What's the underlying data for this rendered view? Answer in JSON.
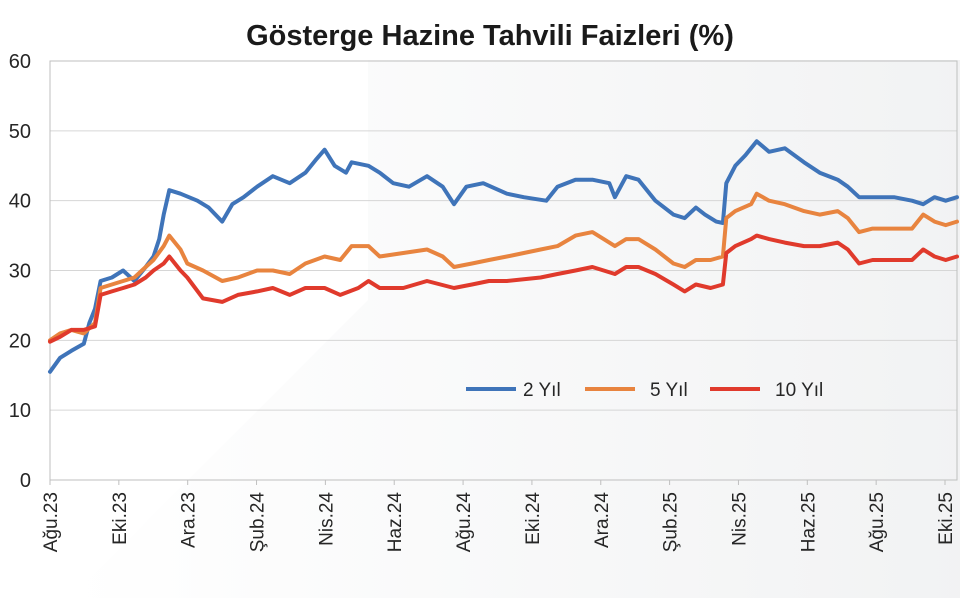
{
  "chart_data": {
    "type": "line",
    "title": "Gösterge Hazine Tahvili Faizleri (%)",
    "xlabel": "",
    "ylabel": "",
    "ylim": [
      0,
      60
    ],
    "yticks": [
      0,
      10,
      20,
      30,
      40,
      50,
      60
    ],
    "grid": "horizontal",
    "legend_position": "bottom-center",
    "x_tick_labels": [
      "Ağu.23",
      "Eki.23",
      "Ara.23",
      "Şub.24",
      "Nis.24",
      "Haz.24",
      "Ağu.24",
      "Eki.24",
      "Ara.24",
      "Şub.25",
      "Nis.25",
      "Haz.25",
      "Ağu.25",
      "Eki.25"
    ],
    "x_domain": [
      "2023-08-01",
      "2025-10-15"
    ],
    "series": [
      {
        "name": "2 Yıl",
        "color": "#3f74b9",
        "points": [
          [
            "2023-08-01",
            15.5
          ],
          [
            "2023-08-10",
            17.5
          ],
          [
            "2023-08-20",
            18.5
          ],
          [
            "2023-08-31",
            19.5
          ],
          [
            "2023-09-05",
            22.5
          ],
          [
            "2023-09-10",
            24.5
          ],
          [
            "2023-09-15",
            28.5
          ],
          [
            "2023-09-25",
            29.0
          ],
          [
            "2023-10-05",
            30.0
          ],
          [
            "2023-10-15",
            28.5
          ],
          [
            "2023-10-25",
            30.5
          ],
          [
            "2023-11-01",
            32.0
          ],
          [
            "2023-11-06",
            34.5
          ],
          [
            "2023-11-10",
            38.0
          ],
          [
            "2023-11-15",
            41.5
          ],
          [
            "2023-11-25",
            41.0
          ],
          [
            "2023-12-10",
            40.0
          ],
          [
            "2023-12-20",
            39.0
          ],
          [
            "2024-01-01",
            37.0
          ],
          [
            "2024-01-10",
            39.5
          ],
          [
            "2024-01-20",
            40.5
          ],
          [
            "2024-02-01",
            42.0
          ],
          [
            "2024-02-15",
            43.5
          ],
          [
            "2024-03-01",
            42.5
          ],
          [
            "2024-03-15",
            44.0
          ],
          [
            "2024-03-25",
            46.0
          ],
          [
            "2024-04-01",
            47.3
          ],
          [
            "2024-04-10",
            45.0
          ],
          [
            "2024-04-20",
            44.0
          ],
          [
            "2024-04-25",
            45.5
          ],
          [
            "2024-05-10",
            45.0
          ],
          [
            "2024-05-20",
            44.0
          ],
          [
            "2024-06-01",
            42.5
          ],
          [
            "2024-06-15",
            42.0
          ],
          [
            "2024-07-01",
            43.5
          ],
          [
            "2024-07-15",
            42.0
          ],
          [
            "2024-07-25",
            39.5
          ],
          [
            "2024-08-05",
            42.0
          ],
          [
            "2024-08-20",
            42.5
          ],
          [
            "2024-09-10",
            41.0
          ],
          [
            "2024-09-25",
            40.5
          ],
          [
            "2024-10-15",
            40.0
          ],
          [
            "2024-10-25",
            42.0
          ],
          [
            "2024-11-10",
            43.0
          ],
          [
            "2024-11-25",
            43.0
          ],
          [
            "2024-12-10",
            42.5
          ],
          [
            "2024-12-15",
            40.5
          ],
          [
            "2024-12-25",
            43.5
          ],
          [
            "2025-01-05",
            43.0
          ],
          [
            "2025-01-20",
            40.0
          ],
          [
            "2025-02-05",
            38.0
          ],
          [
            "2025-02-15",
            37.5
          ],
          [
            "2025-02-25",
            39.0
          ],
          [
            "2025-03-05",
            38.0
          ],
          [
            "2025-03-15",
            37.0
          ],
          [
            "2025-03-21",
            36.8
          ],
          [
            "2025-03-24",
            42.5
          ],
          [
            "2025-04-01",
            45.0
          ],
          [
            "2025-04-10",
            46.5
          ],
          [
            "2025-04-20",
            48.5
          ],
          [
            "2025-05-01",
            47.0
          ],
          [
            "2025-05-15",
            47.5
          ],
          [
            "2025-06-01",
            45.5
          ],
          [
            "2025-06-15",
            44.0
          ],
          [
            "2025-07-01",
            43.0
          ],
          [
            "2025-07-10",
            42.0
          ],
          [
            "2025-07-20",
            40.5
          ],
          [
            "2025-08-01",
            40.5
          ],
          [
            "2025-08-20",
            40.5
          ],
          [
            "2025-09-05",
            40.0
          ],
          [
            "2025-09-15",
            39.5
          ],
          [
            "2025-09-25",
            40.5
          ],
          [
            "2025-10-05",
            40.0
          ],
          [
            "2025-10-15",
            40.5
          ]
        ]
      },
      {
        "name": "5 Yıl",
        "color": "#e8843f",
        "points": [
          [
            "2023-08-01",
            20.0
          ],
          [
            "2023-08-10",
            21.0
          ],
          [
            "2023-08-20",
            21.5
          ],
          [
            "2023-08-31",
            21.0
          ],
          [
            "2023-09-10",
            22.5
          ],
          [
            "2023-09-15",
            27.5
          ],
          [
            "2023-09-25",
            28.0
          ],
          [
            "2023-10-05",
            28.5
          ],
          [
            "2023-10-15",
            29.0
          ],
          [
            "2023-10-25",
            30.5
          ],
          [
            "2023-11-01",
            31.5
          ],
          [
            "2023-11-10",
            33.5
          ],
          [
            "2023-11-15",
            35.0
          ],
          [
            "2023-11-25",
            33.0
          ],
          [
            "2023-12-01",
            31.0
          ],
          [
            "2023-12-15",
            30.0
          ],
          [
            "2024-01-01",
            28.5
          ],
          [
            "2024-01-15",
            29.0
          ],
          [
            "2024-02-01",
            30.0
          ],
          [
            "2024-02-15",
            30.0
          ],
          [
            "2024-03-01",
            29.5
          ],
          [
            "2024-03-15",
            31.0
          ],
          [
            "2024-04-01",
            32.0
          ],
          [
            "2024-04-15",
            31.5
          ],
          [
            "2024-04-25",
            33.5
          ],
          [
            "2024-05-10",
            33.5
          ],
          [
            "2024-05-20",
            32.0
          ],
          [
            "2024-06-10",
            32.5
          ],
          [
            "2024-07-01",
            33.0
          ],
          [
            "2024-07-15",
            32.0
          ],
          [
            "2024-07-25",
            30.5
          ],
          [
            "2024-08-10",
            31.0
          ],
          [
            "2024-08-25",
            31.5
          ],
          [
            "2024-09-10",
            32.0
          ],
          [
            "2024-09-25",
            32.5
          ],
          [
            "2024-10-10",
            33.0
          ],
          [
            "2024-10-25",
            33.5
          ],
          [
            "2024-11-10",
            35.0
          ],
          [
            "2024-11-25",
            35.5
          ],
          [
            "2024-12-05",
            34.5
          ],
          [
            "2024-12-15",
            33.5
          ],
          [
            "2024-12-25",
            34.5
          ],
          [
            "2025-01-05",
            34.5
          ],
          [
            "2025-01-20",
            33.0
          ],
          [
            "2025-02-05",
            31.0
          ],
          [
            "2025-02-15",
            30.5
          ],
          [
            "2025-02-25",
            31.5
          ],
          [
            "2025-03-10",
            31.5
          ],
          [
            "2025-03-21",
            32.0
          ],
          [
            "2025-03-24",
            37.5
          ],
          [
            "2025-04-01",
            38.5
          ],
          [
            "2025-04-15",
            39.5
          ],
          [
            "2025-04-20",
            41.0
          ],
          [
            "2025-05-01",
            40.0
          ],
          [
            "2025-05-15",
            39.5
          ],
          [
            "2025-06-01",
            38.5
          ],
          [
            "2025-06-15",
            38.0
          ],
          [
            "2025-07-01",
            38.5
          ],
          [
            "2025-07-10",
            37.5
          ],
          [
            "2025-07-20",
            35.5
          ],
          [
            "2025-08-01",
            36.0
          ],
          [
            "2025-08-20",
            36.0
          ],
          [
            "2025-09-05",
            36.0
          ],
          [
            "2025-09-15",
            38.0
          ],
          [
            "2025-09-25",
            37.0
          ],
          [
            "2025-10-05",
            36.5
          ],
          [
            "2025-10-15",
            37.0
          ]
        ]
      },
      {
        "name": "10 Yıl",
        "color": "#e03a2c",
        "points": [
          [
            "2023-08-01",
            19.8
          ],
          [
            "2023-08-10",
            20.5
          ],
          [
            "2023-08-20",
            21.5
          ],
          [
            "2023-08-31",
            21.5
          ],
          [
            "2023-09-10",
            22.0
          ],
          [
            "2023-09-15",
            26.5
          ],
          [
            "2023-09-25",
            27.0
          ],
          [
            "2023-10-05",
            27.5
          ],
          [
            "2023-10-15",
            28.0
          ],
          [
            "2023-10-25",
            29.0
          ],
          [
            "2023-11-01",
            30.0
          ],
          [
            "2023-11-10",
            31.0
          ],
          [
            "2023-11-15",
            32.0
          ],
          [
            "2023-11-25",
            30.0
          ],
          [
            "2023-12-01",
            29.0
          ],
          [
            "2023-12-15",
            26.0
          ],
          [
            "2024-01-01",
            25.5
          ],
          [
            "2024-01-15",
            26.5
          ],
          [
            "2024-02-01",
            27.0
          ],
          [
            "2024-02-15",
            27.5
          ],
          [
            "2024-03-01",
            26.5
          ],
          [
            "2024-03-15",
            27.5
          ],
          [
            "2024-04-01",
            27.5
          ],
          [
            "2024-04-15",
            26.5
          ],
          [
            "2024-05-01",
            27.5
          ],
          [
            "2024-05-10",
            28.5
          ],
          [
            "2024-05-20",
            27.5
          ],
          [
            "2024-06-10",
            27.5
          ],
          [
            "2024-07-01",
            28.5
          ],
          [
            "2024-07-25",
            27.5
          ],
          [
            "2024-08-10",
            28.0
          ],
          [
            "2024-08-25",
            28.5
          ],
          [
            "2024-09-10",
            28.5
          ],
          [
            "2024-10-10",
            29.0
          ],
          [
            "2024-10-25",
            29.5
          ],
          [
            "2024-11-10",
            30.0
          ],
          [
            "2024-11-25",
            30.5
          ],
          [
            "2024-12-05",
            30.0
          ],
          [
            "2024-12-15",
            29.5
          ],
          [
            "2024-12-25",
            30.5
          ],
          [
            "2025-01-05",
            30.5
          ],
          [
            "2025-01-20",
            29.5
          ],
          [
            "2025-02-05",
            28.0
          ],
          [
            "2025-02-15",
            27.0
          ],
          [
            "2025-02-25",
            28.0
          ],
          [
            "2025-03-10",
            27.5
          ],
          [
            "2025-03-21",
            28.0
          ],
          [
            "2025-03-24",
            32.5
          ],
          [
            "2025-04-01",
            33.5
          ],
          [
            "2025-04-15",
            34.5
          ],
          [
            "2025-04-20",
            35.0
          ],
          [
            "2025-05-01",
            34.5
          ],
          [
            "2025-05-15",
            34.0
          ],
          [
            "2025-06-01",
            33.5
          ],
          [
            "2025-06-15",
            33.5
          ],
          [
            "2025-07-01",
            34.0
          ],
          [
            "2025-07-10",
            33.0
          ],
          [
            "2025-07-20",
            31.0
          ],
          [
            "2025-08-01",
            31.5
          ],
          [
            "2025-08-20",
            31.5
          ],
          [
            "2025-09-05",
            31.5
          ],
          [
            "2025-09-15",
            33.0
          ],
          [
            "2025-09-25",
            32.0
          ],
          [
            "2025-10-05",
            31.5
          ],
          [
            "2025-10-15",
            32.0
          ]
        ]
      }
    ]
  }
}
